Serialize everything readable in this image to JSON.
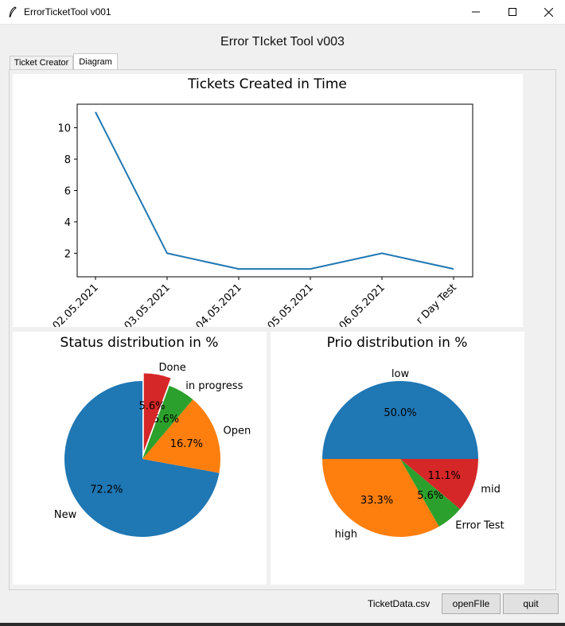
{
  "window": {
    "title": "ErrorTicketTool v001"
  },
  "heading": "Error TIcket Tool v003",
  "tabs": [
    {
      "label": "Ticket Creator"
    },
    {
      "label": "Diagram"
    }
  ],
  "footer": {
    "file_label": "TicketData.csv",
    "open_button": "openFIle",
    "quit_button": "quit"
  },
  "chart_data": [
    {
      "type": "line",
      "title": "Tickets Created in Time",
      "xlabel": "",
      "ylabel": "",
      "x": [
        "02.05.2021",
        "03.05.2021",
        "04.05.2021",
        "05.05.2021",
        "06.05.2021",
        "r Day Test"
      ],
      "y": [
        11,
        2,
        1,
        1,
        2,
        1
      ],
      "yticks": [
        2,
        4,
        6,
        8,
        10
      ],
      "ylim": [
        0.5,
        11.5
      ],
      "grid": false,
      "color": "#1f77b4"
    },
    {
      "type": "pie",
      "title": "Status distribution in %",
      "labels": [
        "New",
        "Open",
        "in progress",
        "Done"
      ],
      "values": [
        72.2,
        16.7,
        5.6,
        5.6
      ],
      "pct_labels": [
        "72.2%",
        "16.7%",
        "5.6%",
        "5.6%"
      ],
      "colors": [
        "#1f77b4",
        "#ff7f0e",
        "#2ca02c",
        "#d62728"
      ],
      "exploded": "Done",
      "start_angle": 90
    },
    {
      "type": "pie",
      "title": "Prio distribution in %",
      "labels": [
        "low",
        "high",
        "Error Test",
        "mid"
      ],
      "values": [
        50.0,
        33.3,
        5.6,
        11.1
      ],
      "pct_labels": [
        "50.0%",
        "33.3%",
        "5.6%",
        "11.1%"
      ],
      "colors": [
        "#1f77b4",
        "#ff7f0e",
        "#2ca02c",
        "#d62728"
      ],
      "start_angle": 0
    }
  ]
}
